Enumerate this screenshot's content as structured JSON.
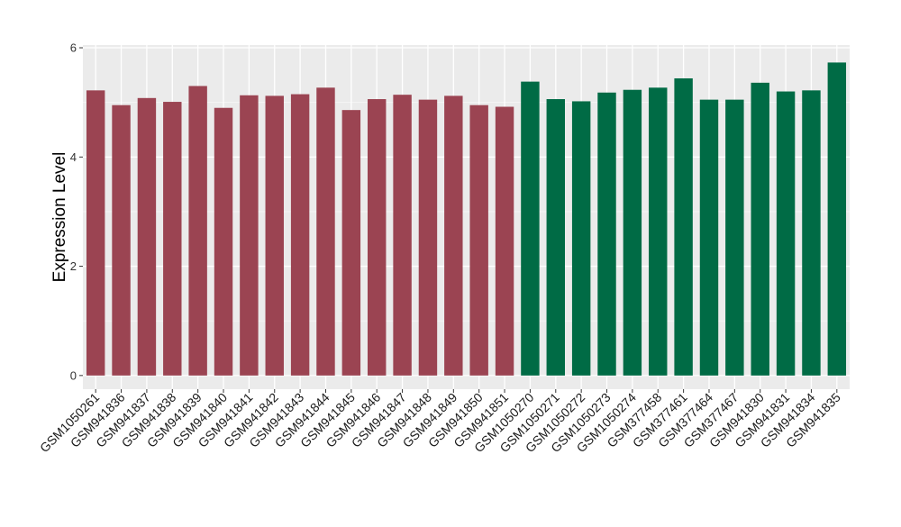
{
  "chart_data": {
    "type": "bar",
    "title": "",
    "xlabel": "",
    "ylabel": "Expression Level",
    "ylim": [
      -0.25,
      6.05
    ],
    "yticks": [
      0,
      2,
      4,
      6
    ],
    "grid": true,
    "panel_background": "#ebebeb",
    "categories": [
      "GSM1050261",
      "GSM941836",
      "GSM941837",
      "GSM941838",
      "GSM941839",
      "GSM941840",
      "GSM941841",
      "GSM941842",
      "GSM941843",
      "GSM941844",
      "GSM941845",
      "GSM941846",
      "GSM941847",
      "GSM941848",
      "GSM941849",
      "GSM941850",
      "GSM941851",
      "GSM1050270",
      "GSM1050271",
      "GSM1050272",
      "GSM1050273",
      "GSM1050274",
      "GSM377458",
      "GSM377461",
      "GSM377464",
      "GSM377467",
      "GSM941830",
      "GSM941831",
      "GSM941834",
      "GSM941835"
    ],
    "values": [
      5.22,
      4.95,
      5.08,
      5.01,
      5.3,
      4.9,
      5.13,
      5.12,
      5.15,
      5.27,
      4.86,
      5.06,
      5.14,
      5.05,
      5.12,
      4.95,
      4.92,
      5.38,
      5.06,
      5.02,
      5.18,
      5.23,
      5.27,
      5.44,
      5.05,
      5.05,
      5.36,
      5.2,
      5.22,
      5.73
    ],
    "bar_colors": [
      "#9b4452",
      "#9b4452",
      "#9b4452",
      "#9b4452",
      "#9b4452",
      "#9b4452",
      "#9b4452",
      "#9b4452",
      "#9b4452",
      "#9b4452",
      "#9b4452",
      "#9b4452",
      "#9b4452",
      "#9b4452",
      "#9b4452",
      "#9b4452",
      "#9b4452",
      "#006b45",
      "#006b45",
      "#006b45",
      "#006b45",
      "#006b45",
      "#006b45",
      "#006b45",
      "#006b45",
      "#006b45",
      "#006b45",
      "#006b45",
      "#006b45",
      "#006b45"
    ]
  }
}
